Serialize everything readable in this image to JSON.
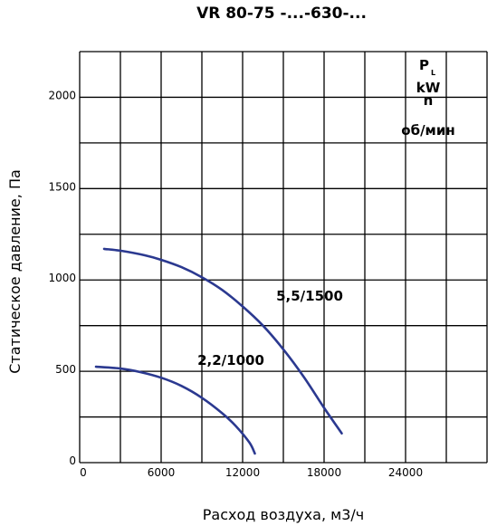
{
  "chart_data": {
    "type": "line",
    "title": "VR 80-75 -...-630-...",
    "xlabel": "Расход воздуха, м3/ч",
    "ylabel": "Статическое давление, Па",
    "x_tick_labels": [
      "0",
      "6000",
      "12000",
      "18000",
      "24000"
    ],
    "y_tick_labels": [
      "0",
      "500",
      "1000",
      "1500",
      "2000"
    ],
    "xlim": [
      0,
      30000
    ],
    "ylim": [
      0,
      2250
    ],
    "x_grid_step": 3000,
    "y_grid_step": 250,
    "grid": true,
    "legend": {
      "placement": "top-right",
      "p_main": "P",
      "p_sub": "L",
      "kw": "kW",
      "n": "n",
      "unit": "об/мин"
    },
    "series": [
      {
        "name": "5,5/1500",
        "x": [
          1800,
          3000,
          4800,
          6000,
          7500,
          9000,
          10500,
          12000,
          13500,
          15000,
          16500,
          18000,
          19300
        ],
        "y": [
          1170,
          1160,
          1135,
          1110,
          1070,
          1015,
          945,
          855,
          750,
          620,
          470,
          300,
          160
        ]
      },
      {
        "name": "2,2/1000",
        "x": [
          1200,
          3000,
          4500,
          6000,
          7500,
          9000,
          10500,
          11500,
          12500,
          12900
        ],
        "y": [
          525,
          515,
          495,
          465,
          420,
          355,
          270,
          200,
          110,
          50
        ]
      }
    ],
    "color": "#2b3990"
  }
}
